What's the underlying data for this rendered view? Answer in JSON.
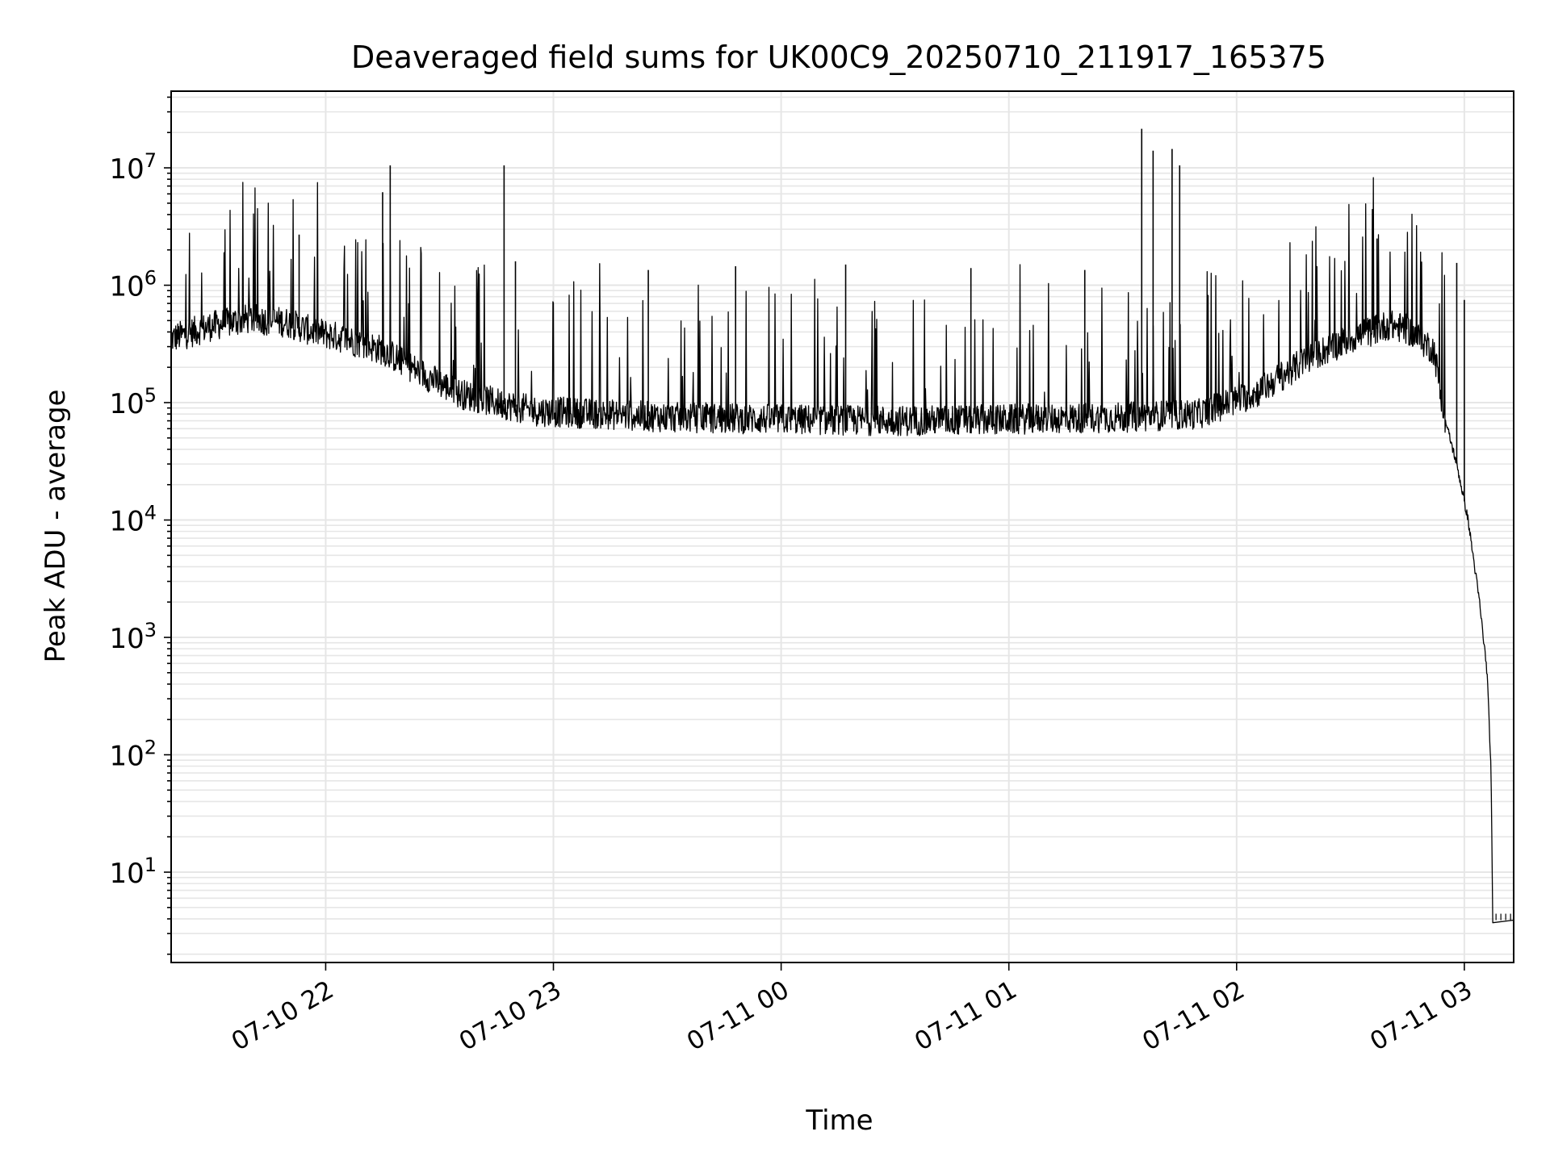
{
  "chart_data": {
    "type": "line",
    "title": "Deaveraged field sums for UK00C9_20250710_211917_165375",
    "xlabel": "Time",
    "ylabel": "Peak ADU - average",
    "x_type": "datetime",
    "y_scale": "log",
    "xlim": [
      "2025-07-10 21:19:17",
      "2025-07-11 03:13:00"
    ],
    "ylim": [
      1.7,
      45000000
    ],
    "grid": true,
    "legend": "none",
    "x_ticks": [
      {
        "time": "2025-07-10 22:00",
        "label": "07-10 22"
      },
      {
        "time": "2025-07-10 23:00",
        "label": "07-10 23"
      },
      {
        "time": "2025-07-11 00:00",
        "label": "07-11 00"
      },
      {
        "time": "2025-07-11 01:00",
        "label": "07-11 01"
      },
      {
        "time": "2025-07-11 02:00",
        "label": "07-11 02"
      },
      {
        "time": "2025-07-11 03:00",
        "label": "07-11 03"
      }
    ],
    "y_ticks": [
      {
        "value": 10,
        "base": "10",
        "exp": "1"
      },
      {
        "value": 100,
        "base": "10",
        "exp": "2"
      },
      {
        "value": 1000,
        "base": "10",
        "exp": "3"
      },
      {
        "value": 10000,
        "base": "10",
        "exp": "4"
      },
      {
        "value": 100000,
        "base": "10",
        "exp": "5"
      },
      {
        "value": 1000000,
        "base": "10",
        "exp": "6"
      },
      {
        "value": 10000000,
        "base": "10",
        "exp": "7"
      }
    ],
    "series": [
      {
        "color": "#000000",
        "points": [
          [
            "2025-07-10 21:19:17",
            350000
          ],
          [
            "2025-07-10 21:30:00",
            450000
          ],
          [
            "2025-07-10 21:40:00",
            520000
          ],
          [
            "2025-07-10 21:50:00",
            480000
          ],
          [
            "2025-07-10 21:55:00",
            420000
          ],
          [
            "2025-07-10 22:05:00",
            350000
          ],
          [
            "2025-07-10 22:15:00",
            280000
          ],
          [
            "2025-07-10 22:25:00",
            180000
          ],
          [
            "2025-07-10 22:35:00",
            120000
          ],
          [
            "2025-07-10 22:45:00",
            100000
          ],
          [
            "2025-07-10 22:55:00",
            85000
          ],
          [
            "2025-07-10 23:30:00",
            75000
          ],
          [
            "2025-07-11 00:00:00",
            72000
          ],
          [
            "2025-07-11 00:30:00",
            70000
          ],
          [
            "2025-07-11 01:00:00",
            72000
          ],
          [
            "2025-07-11 01:30:00",
            75000
          ],
          [
            "2025-07-11 01:50:00",
            80000
          ],
          [
            "2025-07-11 02:05:00",
            120000
          ],
          [
            "2025-07-11 02:20:00",
            250000
          ],
          [
            "2025-07-11 02:30:00",
            350000
          ],
          [
            "2025-07-11 02:40:00",
            460000
          ],
          [
            "2025-07-11 02:45:00",
            420000
          ],
          [
            "2025-07-11 02:52:00",
            280000
          ],
          [
            "2025-07-11 02:55:00",
            70000
          ],
          [
            "2025-07-11 02:58:00",
            30000
          ],
          [
            "2025-07-11 03:01:00",
            10000
          ],
          [
            "2025-07-11 03:04:00",
            2000
          ],
          [
            "2025-07-11 03:06:00",
            500
          ],
          [
            "2025-07-11 03:07:00",
            80
          ],
          [
            "2025-07-11 03:07:30",
            3.9
          ],
          [
            "2025-07-11 03:13:00",
            3.9
          ]
        ],
        "spikes": [
          [
            "2025-07-10 21:53:00",
            2700000
          ],
          [
            "2025-07-10 22:15:00",
            6200000
          ],
          [
            "2025-07-10 22:17:00",
            10500000
          ],
          [
            "2025-07-10 22:47:00",
            10500000
          ],
          [
            "2025-07-10 22:50:00",
            1600000
          ],
          [
            "2025-07-10 23:25:00",
            1350000
          ],
          [
            "2025-07-10 23:48:00",
            1450000
          ],
          [
            "2025-07-11 00:17:00",
            1500000
          ],
          [
            "2025-07-11 00:50:00",
            1400000
          ],
          [
            "2025-07-11 01:20:00",
            1350000
          ],
          [
            "2025-07-11 01:35:00",
            21500000
          ],
          [
            "2025-07-11 01:38:00",
            14000000
          ],
          [
            "2025-07-11 01:43:00",
            14500000
          ],
          [
            "2025-07-11 01:45:00",
            10500000
          ],
          [
            "2025-07-11 02:37:00",
            2500000
          ],
          [
            "2025-07-11 02:58:00",
            1550000
          ],
          [
            "2025-07-11 03:00:00",
            750000
          ]
        ]
      }
    ]
  }
}
